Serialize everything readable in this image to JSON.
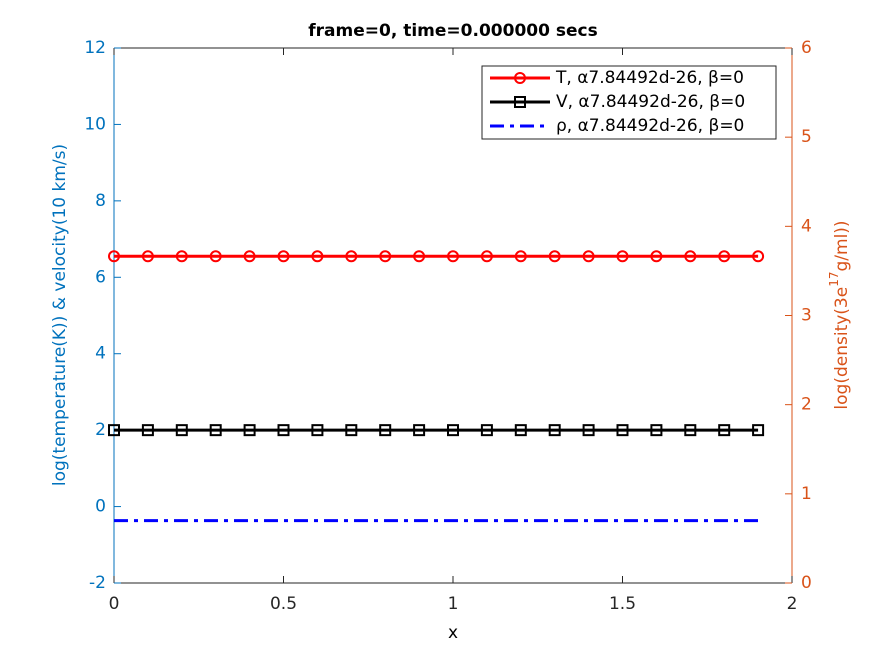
{
  "chart_data": {
    "type": "line",
    "title": "frame=0, time=0.000000 secs",
    "xlabel": "x",
    "ylabel": "log(temperature(K)) & velocity(10 km/s)",
    "y2label": [
      "log(density(3e",
      "17",
      "g/ml))"
    ],
    "x": [
      0,
      0.1,
      0.2,
      0.3,
      0.4,
      0.5,
      0.6,
      0.7,
      0.8,
      0.9,
      1,
      1.1,
      1.2,
      1.3,
      1.4,
      1.5,
      1.6,
      1.7,
      1.8,
      1.9
    ],
    "xlim": [
      0,
      2
    ],
    "xticks": [
      0,
      0.5,
      1,
      1.5,
      2
    ],
    "ylim": [
      -2,
      12
    ],
    "yticks": [
      -2,
      0,
      2,
      4,
      6,
      8,
      10,
      12
    ],
    "y2lim": [
      0,
      6
    ],
    "y2ticks": [
      0,
      1,
      2,
      3,
      4,
      5,
      6
    ],
    "y_color": "#0072bd",
    "y2_color": "#d95319",
    "legend_position": "upper right",
    "series": [
      {
        "name": "T, α7.84492d-26, β=0",
        "color": "#ff0000",
        "marker": "circle",
        "dash": "solid",
        "values": [
          6.55,
          6.55,
          6.55,
          6.55,
          6.55,
          6.55,
          6.55,
          6.55,
          6.55,
          6.55,
          6.55,
          6.55,
          6.55,
          6.55,
          6.55,
          6.55,
          6.55,
          6.55,
          6.55,
          6.55
        ]
      },
      {
        "name": "V, α7.84492d-26, β=0",
        "color": "#000000",
        "marker": "square",
        "dash": "solid",
        "values": [
          2,
          2,
          2,
          2,
          2,
          2,
          2,
          2,
          2,
          2,
          2,
          2,
          2,
          2,
          2,
          2,
          2,
          2,
          2,
          2
        ]
      },
      {
        "name": "ρ, α7.84492d-26, β=0",
        "color": "#0000ff",
        "marker": "none",
        "dash": "dashdot",
        "axis": "y2",
        "values": [
          0.7,
          0.7,
          0.7,
          0.7,
          0.7,
          0.7,
          0.7,
          0.7,
          0.7,
          0.7,
          0.7,
          0.7,
          0.7,
          0.7,
          0.7,
          0.7,
          0.7,
          0.7,
          0.7,
          0.7
        ]
      }
    ]
  }
}
